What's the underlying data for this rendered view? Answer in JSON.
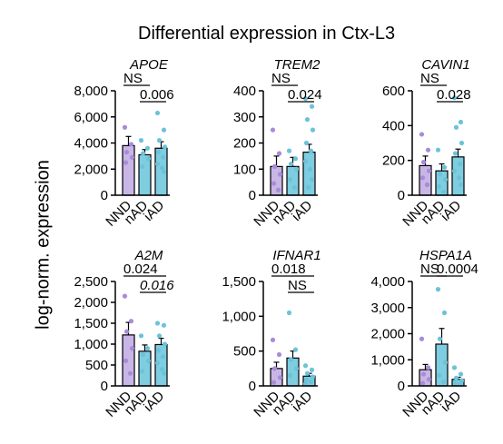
{
  "figure": {
    "title": "Differential expression in Ctx-L3",
    "ylabel": "log-norm. expression"
  },
  "colors": {
    "NND": "#c8b6e6",
    "nAD": "#7ecde0",
    "iAD": "#7ecde0",
    "NND_dot": "#a98bd8",
    "nAD_dot": "#6cc3d9",
    "iAD_dot": "#6cc3d9"
  },
  "chart_data": [
    {
      "type": "bar",
      "title": "APOE",
      "categories": [
        "NND",
        "nAD",
        "iAD"
      ],
      "values": [
        3800,
        3100,
        3600
      ],
      "errors": [
        700,
        400,
        500
      ],
      "ylim": [
        0,
        8000
      ],
      "yticks": [
        0,
        2000,
        4000,
        6000,
        8000
      ],
      "ytick_labels": [
        "0",
        "2,000",
        "4,000",
        "6,000",
        "8,000"
      ],
      "points": [
        [
          5200,
          3900,
          3300,
          2900,
          2500
        ],
        [
          4200,
          3600,
          3200,
          2800,
          2200
        ],
        [
          6300,
          5000,
          4200,
          3700,
          3300,
          2900,
          2400,
          2100,
          1800
        ]
      ],
      "annotations": [
        {
          "text": "NS",
          "from": 0,
          "to": 1,
          "level": 0,
          "italic": false
        },
        {
          "text": "0.006",
          "from": 1,
          "to": 2,
          "level": 1,
          "italic": false
        }
      ]
    },
    {
      "type": "bar",
      "title": "TREM2",
      "categories": [
        "NND",
        "nAD",
        "iAD"
      ],
      "values": [
        110,
        110,
        165
      ],
      "errors": [
        40,
        35,
        30
      ],
      "ylim": [
        0,
        400
      ],
      "yticks": [
        0,
        100,
        200,
        300,
        400
      ],
      "ytick_labels": [
        "0",
        "100",
        "200",
        "300",
        "400"
      ],
      "points": [
        [
          250,
          160,
          110,
          80,
          45,
          20
        ],
        [
          170,
          140,
          120,
          100,
          60,
          30
        ],
        [
          370,
          340,
          290,
          250,
          200,
          170,
          130,
          100,
          60,
          30
        ]
      ],
      "annotations": [
        {
          "text": "NS",
          "from": 0,
          "to": 1,
          "level": 0,
          "italic": false
        },
        {
          "text": "0.024",
          "from": 1,
          "to": 2,
          "level": 1,
          "italic": false
        }
      ]
    },
    {
      "type": "bar",
      "title": "CAVIN1",
      "categories": [
        "NND",
        "nAD",
        "iAD"
      ],
      "values": [
        170,
        140,
        220
      ],
      "errors": [
        55,
        40,
        45
      ],
      "ylim": [
        0,
        600
      ],
      "yticks": [
        0,
        200,
        400,
        600
      ],
      "ytick_labels": [
        "0",
        "200",
        "400",
        "600"
      ],
      "points": [
        [
          350,
          260,
          190,
          140,
          100,
          60
        ],
        [
          260,
          160,
          120,
          90,
          50,
          20
        ],
        [
          560,
          420,
          390,
          300,
          240,
          180,
          140,
          100,
          60
        ]
      ],
      "annotations": [
        {
          "text": "NS",
          "from": 0,
          "to": 1,
          "level": 0,
          "italic": false
        },
        {
          "text": "0.028",
          "from": 1,
          "to": 2,
          "level": 1,
          "italic": false
        }
      ]
    },
    {
      "type": "bar",
      "title": "A2M",
      "categories": [
        "NND",
        "nAD",
        "iAD"
      ],
      "values": [
        1220,
        830,
        990
      ],
      "errors": [
        300,
        150,
        150
      ],
      "ylim": [
        0,
        2500
      ],
      "yticks": [
        0,
        500,
        1000,
        1500,
        2000,
        2500
      ],
      "ytick_labels": [
        "0",
        "500",
        "1,000",
        "1,500",
        "2,000",
        "2,500"
      ],
      "points": [
        [
          2150,
          1550,
          1300,
          900,
          600,
          300
        ],
        [
          1200,
          900,
          750,
          600,
          350
        ],
        [
          1500,
          1450,
          1200,
          1000,
          850,
          700,
          550,
          400,
          300
        ]
      ],
      "annotations": [
        {
          "text": "0.024",
          "from": 0,
          "to": 2,
          "level": 0,
          "italic": false
        },
        {
          "text": "0.016",
          "from": 1,
          "to": 2,
          "level": 1,
          "italic": true
        }
      ]
    },
    {
      "type": "bar",
      "title": "IFNAR1",
      "categories": [
        "NND",
        "nAD",
        "iAD"
      ],
      "values": [
        250,
        400,
        140
      ],
      "errors": [
        90,
        100,
        40
      ],
      "ylim": [
        0,
        1500
      ],
      "yticks": [
        0,
        500,
        1000,
        1500
      ],
      "ytick_labels": [
        "0",
        "500",
        "1,000",
        "1,500"
      ],
      "points": [
        [
          660,
          450,
          250,
          120,
          50
        ],
        [
          1050,
          520,
          380,
          250,
          150
        ],
        [
          290,
          230,
          180,
          130,
          90,
          60,
          30
        ]
      ],
      "annotations": [
        {
          "text": "0.018",
          "from": 0,
          "to": 2,
          "level": 0,
          "italic": false
        },
        {
          "text": "NS",
          "from": 1,
          "to": 2,
          "level": 1,
          "italic": false
        }
      ]
    },
    {
      "type": "bar",
      "title": "HSPA1A",
      "categories": [
        "NND",
        "nAD",
        "iAD"
      ],
      "values": [
        620,
        1600,
        250
      ],
      "errors": [
        200,
        600,
        80
      ],
      "ylim": [
        0,
        4000
      ],
      "yticks": [
        0,
        1000,
        2000,
        3000,
        4000
      ],
      "ytick_labels": [
        "0",
        "1,000",
        "2,000",
        "3,000",
        "4,000"
      ],
      "points": [
        [
          1800,
          700,
          450,
          250,
          100
        ],
        [
          3700,
          2800,
          1800,
          900,
          400,
          150
        ],
        [
          700,
          450,
          300,
          200,
          120,
          60
        ]
      ],
      "annotations": [
        {
          "text": "NS",
          "from": 0,
          "to": 1,
          "level": 0,
          "italic": false
        },
        {
          "text": "0.0004",
          "from": 1,
          "to": 2,
          "level": 0,
          "italic": false
        }
      ]
    }
  ]
}
